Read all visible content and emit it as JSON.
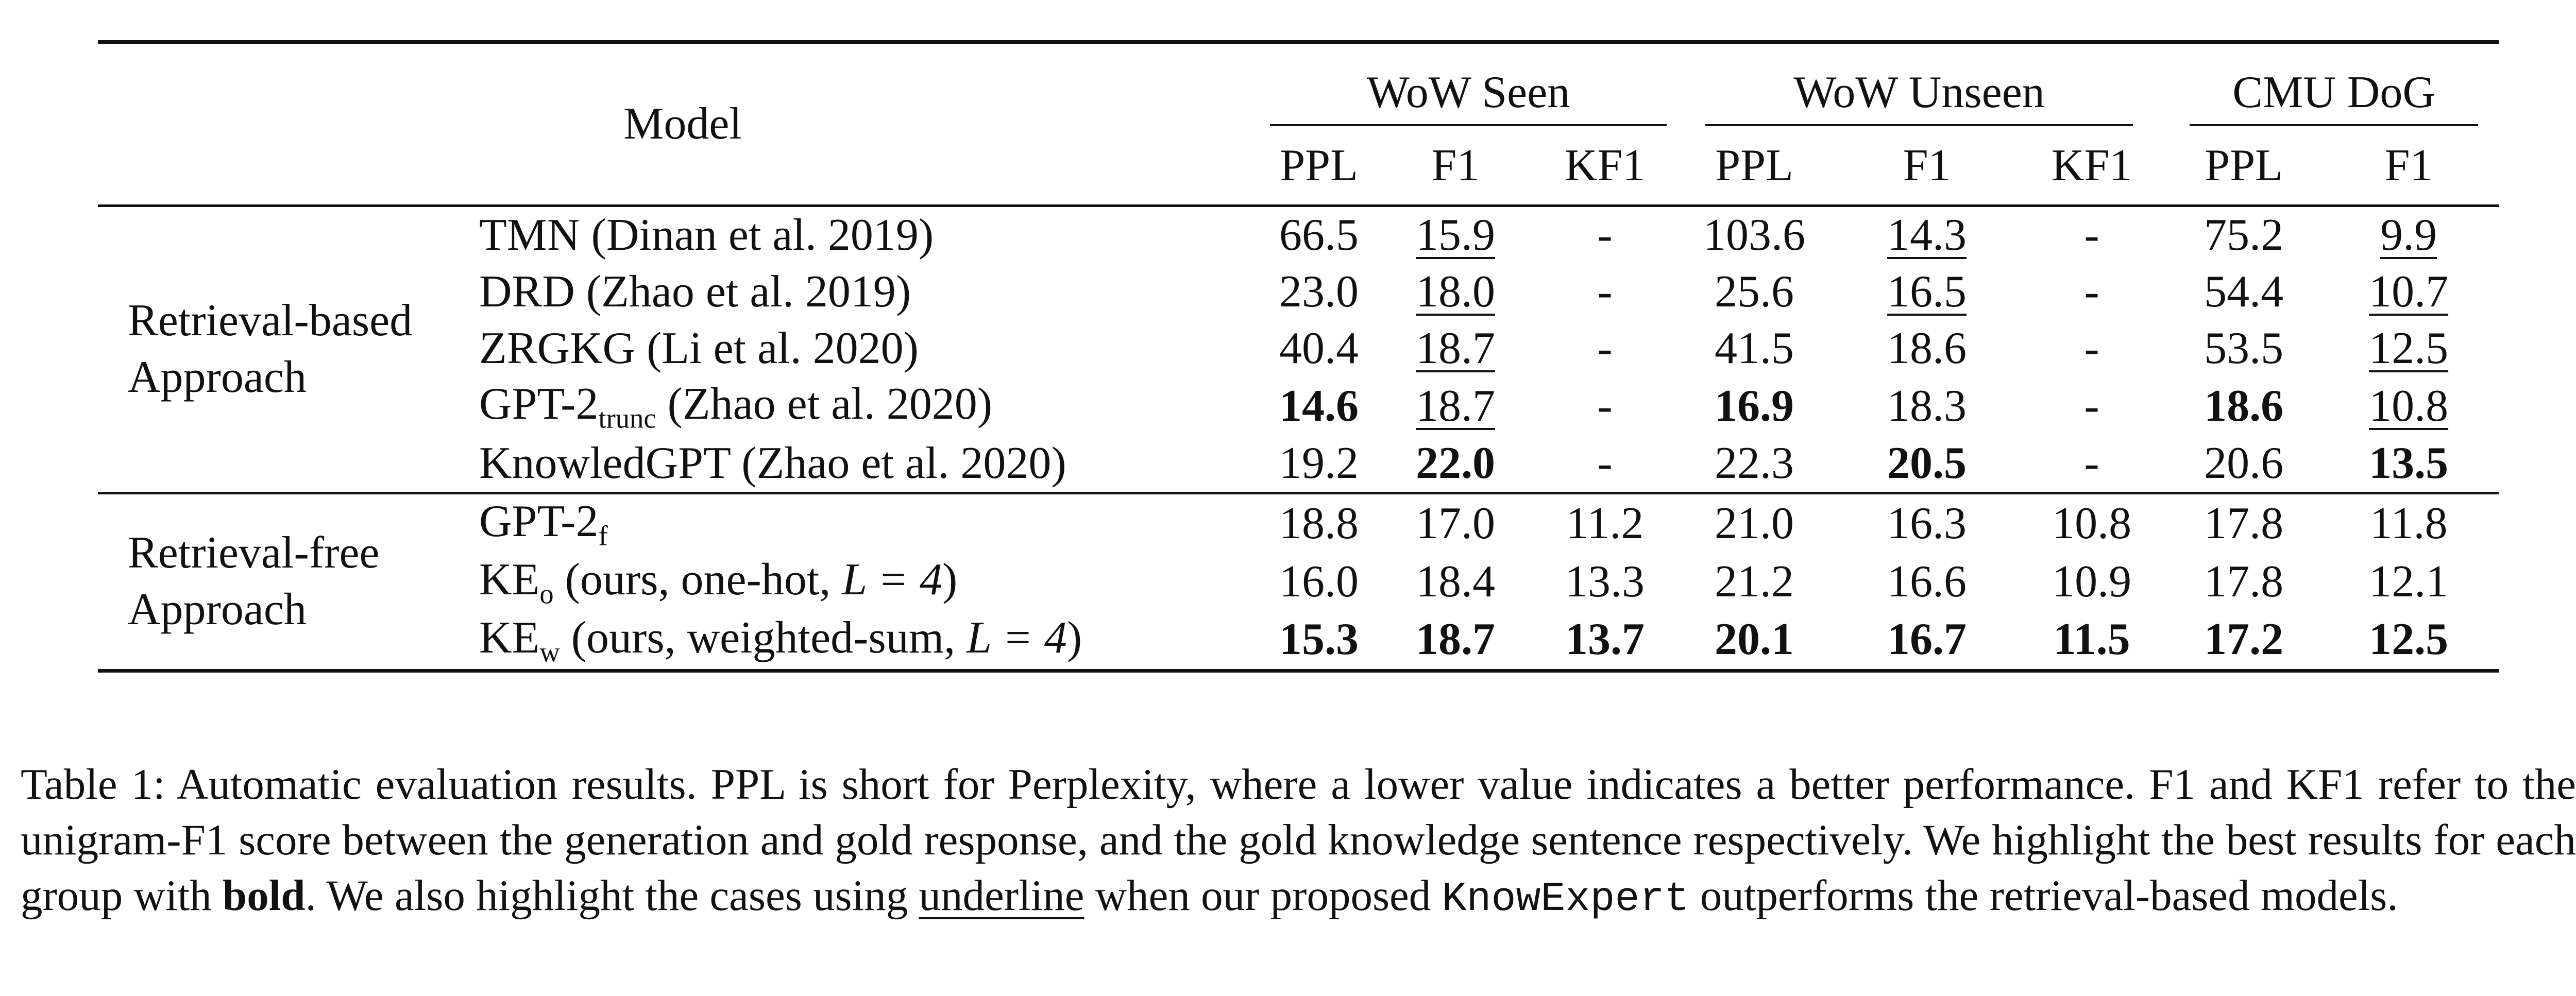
{
  "table": {
    "header": {
      "model": "Model",
      "groups": [
        "WoW Seen",
        "WoW Unseen",
        "CMU DoG"
      ],
      "metrics": [
        "PPL",
        "F1",
        "KF1",
        "PPL",
        "F1",
        "KF1",
        "PPL",
        "F1"
      ]
    },
    "blocks": [
      {
        "label_line1": "Retrieval-based",
        "label_line2": "Approach",
        "rows": [
          {
            "model_main": "TMN (Dinan et al. 2019)",
            "model_sub": "",
            "model_tail": "",
            "cells": [
              "66.5",
              "15.9",
              "-",
              "103.6",
              "14.3",
              "-",
              "75.2",
              "9.9"
            ],
            "bold": [
              false,
              false,
              false,
              false,
              false,
              false,
              false,
              false
            ],
            "underline": [
              false,
              true,
              false,
              false,
              true,
              false,
              false,
              true
            ]
          },
          {
            "model_main": "DRD (Zhao et al. 2019)",
            "model_sub": "",
            "model_tail": "",
            "cells": [
              "23.0",
              "18.0",
              "-",
              "25.6",
              "16.5",
              "-",
              "54.4",
              "10.7"
            ],
            "bold": [
              false,
              false,
              false,
              false,
              false,
              false,
              false,
              false
            ],
            "underline": [
              false,
              true,
              false,
              false,
              true,
              false,
              false,
              true
            ]
          },
          {
            "model_main": "ZRGKG (Li et al. 2020)",
            "model_sub": "",
            "model_tail": "",
            "cells": [
              "40.4",
              "18.7",
              "-",
              "41.5",
              "18.6",
              "-",
              "53.5",
              "12.5"
            ],
            "bold": [
              false,
              false,
              false,
              false,
              false,
              false,
              false,
              false
            ],
            "underline": [
              false,
              true,
              false,
              false,
              false,
              false,
              false,
              true
            ]
          },
          {
            "model_main": "GPT-2",
            "model_sub": "trunc",
            "model_tail": " (Zhao et al. 2020)",
            "cells": [
              "14.6",
              "18.7",
              "-",
              "16.9",
              "18.3",
              "-",
              "18.6",
              "10.8"
            ],
            "bold": [
              true,
              false,
              false,
              true,
              false,
              false,
              true,
              false
            ],
            "underline": [
              false,
              true,
              false,
              false,
              false,
              false,
              false,
              true
            ]
          },
          {
            "model_main": "KnowledGPT (Zhao et al. 2020)",
            "model_sub": "",
            "model_tail": "",
            "cells": [
              "19.2",
              "22.0",
              "-",
              "22.3",
              "20.5",
              "-",
              "20.6",
              "13.5"
            ],
            "bold": [
              false,
              true,
              false,
              false,
              true,
              false,
              false,
              true
            ],
            "underline": [
              false,
              false,
              false,
              false,
              false,
              false,
              false,
              false
            ]
          }
        ]
      },
      {
        "label_line1": "Retrieval-free",
        "label_line2": "Approach",
        "rows": [
          {
            "model_main": "GPT-2",
            "model_sub": "f",
            "model_tail": "",
            "cells": [
              "18.8",
              "17.0",
              "11.2",
              "21.0",
              "16.3",
              "10.8",
              "17.8",
              "11.8"
            ],
            "bold": [
              false,
              false,
              false,
              false,
              false,
              false,
              false,
              false
            ],
            "underline": [
              false,
              false,
              false,
              false,
              false,
              false,
              false,
              false
            ]
          },
          {
            "model_main": "KE",
            "model_sub": "o",
            "model_tail": " (ours, one-hot, ",
            "model_math": "L = 4",
            "model_end": ")",
            "cells": [
              "16.0",
              "18.4",
              "13.3",
              "21.2",
              "16.6",
              "10.9",
              "17.8",
              "12.1"
            ],
            "bold": [
              false,
              false,
              false,
              false,
              false,
              false,
              false,
              false
            ],
            "underline": [
              false,
              false,
              false,
              false,
              false,
              false,
              false,
              false
            ]
          },
          {
            "model_main": "KE",
            "model_sub": "w",
            "model_tail": " (ours, weighted-sum, ",
            "model_math": "L = 4",
            "model_end": ")",
            "cells": [
              "15.3",
              "18.7",
              "13.7",
              "20.1",
              "16.7",
              "11.5",
              "17.2",
              "12.5"
            ],
            "bold": [
              true,
              true,
              true,
              true,
              true,
              true,
              true,
              true
            ],
            "underline": [
              false,
              false,
              false,
              false,
              false,
              false,
              false,
              false
            ]
          }
        ]
      }
    ]
  },
  "caption": {
    "p1": "Table 1: Automatic evaluation results. PPL is short for Perplexity, where a lower value indicates a better performance. F1 and KF1 refer to the unigram-F1 score between the generation and gold response, and the gold knowledge sentence respectively. We highlight the best results for each group with ",
    "bold_word": "bold",
    "p2": ". We also highlight the cases using ",
    "underline_word": "underline",
    "p3": " when our proposed ",
    "mono_word": "KnowExpert",
    "p4": " outperforms the retrieval-based models."
  }
}
